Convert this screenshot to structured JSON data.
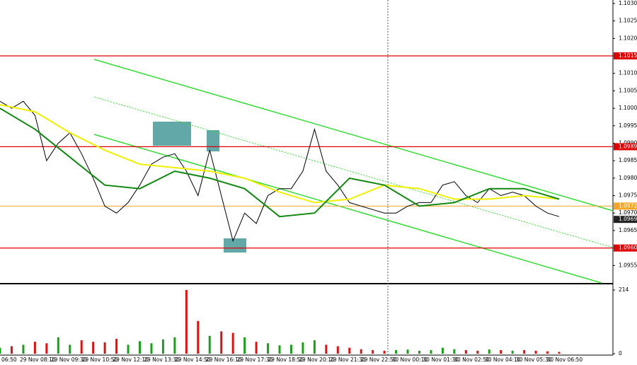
{
  "chart_data": {
    "type": "price",
    "time_labels": [
      "06:50",
      "29 Nov 08:10",
      "29 Nov 09:30",
      "29 Nov 10:50",
      "29 Nov 12:10",
      "29 Nov 13:30",
      "29 Nov 14:50",
      "29 Nov 16:10",
      "29 Nov 17:30",
      "29 Nov 18:50",
      "29 Nov 20:10",
      "29 Nov 21:30",
      "29 Nov 22:50",
      "30 Nov 00:10",
      "30 Nov 01:30",
      "30 Nov 02:50",
      "30 Nov 04:10",
      "30 Nov 05:30",
      "30 Nov 06:50"
    ],
    "ylim": [
      1.095,
      1.1031
    ],
    "yticks": [
      {
        "value": 1.103,
        "label": "1.1030"
      },
      1.1025,
      {
        "value": 1.102,
        "label": "1.1020"
      },
      1.1015,
      {
        "value": 1.101,
        "label": "1.1010"
      },
      1.1005,
      {
        "value": 1.1,
        "label": "1.1000"
      },
      1.0995,
      {
        "value": 1.099,
        "label": "1.0990"
      },
      1.0985,
      {
        "value": 1.098,
        "label": "1.0980"
      },
      1.0975,
      {
        "value": 1.097,
        "label": "1.0970"
      },
      1.0965,
      {
        "value": 1.096,
        "label": "1.0960"
      },
      1.0955
    ],
    "levels": [
      1.1015,
      1.0989,
      {
        "value": 1.096,
        "label": "1.0960"
      }
    ],
    "level_color": "#e00000",
    "bid_line": 1.0972,
    "bid_color": "#f5a623",
    "last_price": 1.0969,
    "series": [
      {
        "name": "close",
        "color": "#000000",
        "values": [
          1.1002,
          1.1,
          1.1002,
          1.0998,
          1.0985,
          1.099,
          1.0993,
          1.0987,
          1.098,
          1.0972,
          1.097,
          1.0973,
          1.0978,
          1.0984,
          1.0986,
          1.0987,
          1.0982,
          1.0975,
          1.0988,
          1.0975,
          1.0962,
          1.097,
          1.0967,
          1.0975,
          1.0977,
          1.0977,
          1.0982,
          1.0994,
          1.0982,
          1.0978,
          1.0973,
          1.0972,
          1.0971,
          1.097,
          1.097,
          1.0972,
          1.0973,
          1.0973,
          1.0978,
          1.0979,
          1.0975,
          1.0973,
          1.0977,
          1.0975,
          1.0976,
          1.0975,
          1.0972,
          1.097,
          1.0969
        ]
      },
      {
        "name": "ma-slow",
        "color": "#f0f000",
        "values": [
          1.1001,
          1.0999,
          1.0993,
          1.0988,
          1.0984,
          1.0983,
          1.0982,
          1.098,
          1.0976,
          1.0973,
          1.0974,
          1.0978,
          1.0977,
          1.0974,
          1.0974,
          1.0975,
          1.0974
        ]
      },
      {
        "name": "ma-fast",
        "color": "#118811",
        "values": [
          1.1,
          1.0994,
          1.0986,
          1.0978,
          1.0977,
          1.0982,
          1.098,
          1.0977,
          1.0969,
          1.097,
          1.098,
          1.0978,
          1.0972,
          1.0973,
          1.0977,
          1.0977,
          1.0974
        ]
      }
    ],
    "volumes": [
      20,
      25,
      30,
      40,
      35,
      55,
      30,
      45,
      40,
      38,
      50,
      30,
      42,
      35,
      48,
      55,
      214,
      110,
      60,
      75,
      70,
      55,
      40,
      35,
      28,
      30,
      38,
      45,
      30,
      25,
      20,
      15,
      12,
      10,
      12,
      14,
      10,
      12,
      20,
      15,
      12,
      10,
      14,
      12,
      10,
      12,
      10,
      8,
      6
    ],
    "vlim": [
      0,
      214
    ],
    "vticks": [
      214,
      0
    ],
    "up_color": "#19a019",
    "down_color": "#e01010"
  }
}
